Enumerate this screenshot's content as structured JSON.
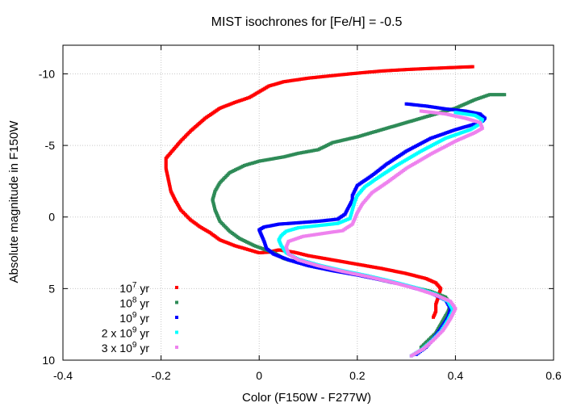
{
  "chart_data": {
    "type": "scatter",
    "title": "MIST isochrones for [Fe/H] = -0.5",
    "xlabel": "Color (F150W - F277W)",
    "ylabel": "Absolute magnitude in F150W",
    "xlim": [
      -0.4,
      0.6
    ],
    "ylim": [
      10,
      -12
    ],
    "y_inverted": true,
    "xticks": [
      "-0.4",
      "-0.2",
      "0",
      "0.2",
      "0.4",
      "0.6"
    ],
    "yticks": [
      "-10",
      "-5",
      "0",
      "5",
      "10"
    ],
    "xtick_values": [
      -0.4,
      -0.2,
      0,
      0.2,
      0.4,
      0.6
    ],
    "ytick_values": [
      -10,
      -5,
      0,
      5,
      10
    ],
    "grid": true,
    "legend_position": "bottom-left",
    "series": [
      {
        "legend": {
          "prefix": "",
          "base": "10",
          "exp": "7",
          "suffix": " yr"
        },
        "color": "#ff0000",
        "points": [
          [
            0.435,
            -10.5
          ],
          [
            0.4,
            -10.45
          ],
          [
            0.35,
            -10.38
          ],
          [
            0.3,
            -10.3
          ],
          [
            0.25,
            -10.2
          ],
          [
            0.2,
            -10.05
          ],
          [
            0.15,
            -9.88
          ],
          [
            0.1,
            -9.7
          ],
          [
            0.05,
            -9.45
          ],
          [
            0.02,
            -9.15
          ],
          [
            0.0,
            -8.75
          ],
          [
            -0.02,
            -8.35
          ],
          [
            -0.05,
            -8.0
          ],
          [
            -0.08,
            -7.6
          ],
          [
            -0.11,
            -6.9
          ],
          [
            -0.14,
            -6.0
          ],
          [
            -0.16,
            -5.3
          ],
          [
            -0.175,
            -4.7
          ],
          [
            -0.19,
            -4.1
          ],
          [
            -0.19,
            -3.4
          ],
          [
            -0.185,
            -2.6
          ],
          [
            -0.18,
            -1.8
          ],
          [
            -0.17,
            -1.1
          ],
          [
            -0.16,
            -0.5
          ],
          [
            -0.14,
            0.2
          ],
          [
            -0.12,
            0.7
          ],
          [
            -0.1,
            1.1
          ],
          [
            -0.08,
            1.6
          ],
          [
            -0.05,
            2.0
          ],
          [
            -0.02,
            2.3
          ],
          [
            0.0,
            2.5
          ],
          [
            0.02,
            2.45
          ],
          [
            0.04,
            2.3
          ],
          [
            0.07,
            2.45
          ],
          [
            0.1,
            2.7
          ],
          [
            0.15,
            3.0
          ],
          [
            0.2,
            3.3
          ],
          [
            0.25,
            3.6
          ],
          [
            0.3,
            3.95
          ],
          [
            0.34,
            4.3
          ],
          [
            0.36,
            4.6
          ],
          [
            0.37,
            5.0
          ],
          [
            0.365,
            5.6
          ],
          [
            0.36,
            6.1
          ],
          [
            0.36,
            6.6
          ],
          [
            0.355,
            7.0
          ]
        ]
      },
      {
        "legend": {
          "prefix": "",
          "base": "10",
          "exp": "8",
          "suffix": " yr"
        },
        "color": "#2e8b57",
        "points": [
          [
            0.5,
            -8.55
          ],
          [
            0.47,
            -8.55
          ],
          [
            0.44,
            -8.2
          ],
          [
            0.4,
            -7.6
          ],
          [
            0.35,
            -7.1
          ],
          [
            0.3,
            -6.6
          ],
          [
            0.25,
            -6.1
          ],
          [
            0.2,
            -5.6
          ],
          [
            0.15,
            -5.2
          ],
          [
            0.12,
            -4.7
          ],
          [
            0.08,
            -4.45
          ],
          [
            0.05,
            -4.2
          ],
          [
            0.0,
            -3.9
          ],
          [
            -0.03,
            -3.6
          ],
          [
            -0.06,
            -3.1
          ],
          [
            -0.08,
            -2.4
          ],
          [
            -0.09,
            -1.8
          ],
          [
            -0.095,
            -1.2
          ],
          [
            -0.09,
            -0.5
          ],
          [
            -0.08,
            0.3
          ],
          [
            -0.06,
            1.0
          ],
          [
            -0.04,
            1.5
          ],
          [
            -0.01,
            2.0
          ],
          [
            0.03,
            2.5
          ],
          [
            0.05,
            2.9
          ],
          [
            0.06,
            3.0
          ],
          [
            0.1,
            3.3
          ],
          [
            0.15,
            3.7
          ],
          [
            0.2,
            4.0
          ],
          [
            0.25,
            4.4
          ],
          [
            0.3,
            4.8
          ],
          [
            0.35,
            5.2
          ],
          [
            0.38,
            5.6
          ],
          [
            0.39,
            6.1
          ],
          [
            0.385,
            6.6
          ],
          [
            0.37,
            7.5
          ],
          [
            0.36,
            8.1
          ],
          [
            0.345,
            8.6
          ],
          [
            0.33,
            9.1
          ]
        ]
      },
      {
        "legend": {
          "prefix": "",
          "base": "10",
          "exp": "9",
          "suffix": " yr"
        },
        "color": "#0000ff",
        "points": [
          [
            0.3,
            -7.9
          ],
          [
            0.34,
            -7.75
          ],
          [
            0.38,
            -7.55
          ],
          [
            0.42,
            -7.4
          ],
          [
            0.45,
            -7.2
          ],
          [
            0.46,
            -6.9
          ],
          [
            0.455,
            -6.7
          ],
          [
            0.44,
            -6.5
          ],
          [
            0.4,
            -6.1
          ],
          [
            0.35,
            -5.5
          ],
          [
            0.3,
            -4.6
          ],
          [
            0.26,
            -3.7
          ],
          [
            0.23,
            -2.9
          ],
          [
            0.2,
            -2.2
          ],
          [
            0.19,
            -1.5
          ],
          [
            0.19,
            -1.2
          ],
          [
            0.175,
            -0.2
          ],
          [
            0.16,
            0.15
          ],
          [
            0.12,
            0.3
          ],
          [
            0.08,
            0.4
          ],
          [
            0.04,
            0.5
          ],
          [
            0.01,
            0.7
          ],
          [
            0.0,
            0.9
          ],
          [
            0.005,
            1.3
          ],
          [
            0.01,
            1.7
          ],
          [
            0.015,
            2.2
          ],
          [
            0.03,
            2.6
          ],
          [
            0.06,
            3.0
          ],
          [
            0.1,
            3.4
          ],
          [
            0.15,
            3.75
          ],
          [
            0.2,
            4.05
          ],
          [
            0.25,
            4.4
          ],
          [
            0.3,
            4.8
          ],
          [
            0.35,
            5.3
          ],
          [
            0.38,
            5.8
          ],
          [
            0.39,
            6.4
          ],
          [
            0.385,
            7.0
          ],
          [
            0.37,
            7.8
          ],
          [
            0.355,
            8.5
          ],
          [
            0.34,
            9.1
          ],
          [
            0.32,
            9.6
          ]
        ]
      },
      {
        "legend": {
          "prefix": "2 x ",
          "base": "10",
          "exp": "9",
          "suffix": " yr"
        },
        "color": "#00ffff",
        "points": [
          [
            0.4,
            -7.3
          ],
          [
            0.44,
            -7.1
          ],
          [
            0.455,
            -6.8
          ],
          [
            0.45,
            -6.5
          ],
          [
            0.43,
            -6.1
          ],
          [
            0.38,
            -5.5
          ],
          [
            0.33,
            -4.6
          ],
          [
            0.28,
            -3.6
          ],
          [
            0.24,
            -2.7
          ],
          [
            0.215,
            -2.1
          ],
          [
            0.2,
            -1.5
          ],
          [
            0.195,
            -1.1
          ],
          [
            0.185,
            0.1
          ],
          [
            0.16,
            0.45
          ],
          [
            0.12,
            0.6
          ],
          [
            0.08,
            0.75
          ],
          [
            0.055,
            1.0
          ],
          [
            0.045,
            1.3
          ],
          [
            0.04,
            1.6
          ],
          [
            0.045,
            2.0
          ],
          [
            0.055,
            2.5
          ],
          [
            0.08,
            2.95
          ],
          [
            0.12,
            3.35
          ],
          [
            0.17,
            3.75
          ],
          [
            0.22,
            4.1
          ],
          [
            0.27,
            4.5
          ],
          [
            0.32,
            4.95
          ],
          [
            0.36,
            5.4
          ],
          [
            0.385,
            5.9
          ],
          [
            0.395,
            6.5
          ],
          [
            0.385,
            7.2
          ],
          [
            0.37,
            8.0
          ],
          [
            0.35,
            8.7
          ],
          [
            0.33,
            9.3
          ],
          [
            0.31,
            9.7
          ]
        ]
      },
      {
        "legend": {
          "prefix": "3 x ",
          "base": "10",
          "exp": "9",
          "suffix": " yr"
        },
        "color": "#ee82ee",
        "points": [
          [
            0.33,
            -7.4
          ],
          [
            0.38,
            -7.2
          ],
          [
            0.42,
            -6.9
          ],
          [
            0.45,
            -6.6
          ],
          [
            0.455,
            -6.2
          ],
          [
            0.44,
            -5.9
          ],
          [
            0.4,
            -5.3
          ],
          [
            0.35,
            -4.4
          ],
          [
            0.3,
            -3.4
          ],
          [
            0.26,
            -2.4
          ],
          [
            0.23,
            -1.7
          ],
          [
            0.21,
            -0.9
          ],
          [
            0.2,
            -0.3
          ],
          [
            0.19,
            0.5
          ],
          [
            0.17,
            0.95
          ],
          [
            0.13,
            1.15
          ],
          [
            0.09,
            1.35
          ],
          [
            0.06,
            1.7
          ],
          [
            0.055,
            2.1
          ],
          [
            0.06,
            2.6
          ],
          [
            0.08,
            3.0
          ],
          [
            0.12,
            3.4
          ],
          [
            0.17,
            3.8
          ],
          [
            0.22,
            4.15
          ],
          [
            0.27,
            4.55
          ],
          [
            0.32,
            5.0
          ],
          [
            0.36,
            5.45
          ],
          [
            0.39,
            5.9
          ],
          [
            0.4,
            6.4
          ],
          [
            0.39,
            7.1
          ],
          [
            0.375,
            7.9
          ],
          [
            0.355,
            8.6
          ],
          [
            0.335,
            9.2
          ],
          [
            0.31,
            9.7
          ]
        ]
      }
    ]
  }
}
